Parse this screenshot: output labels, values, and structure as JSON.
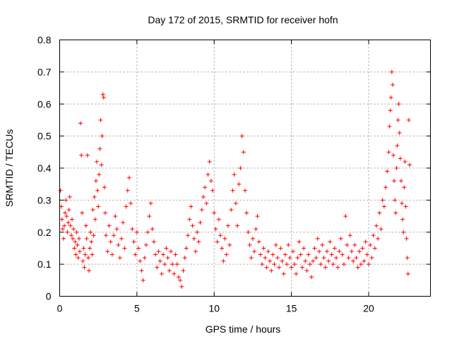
{
  "chart_data": {
    "type": "scatter",
    "title": "Day 172 of 2015, SRMTID for receiver hofn",
    "xlabel": "GPS time / hours",
    "ylabel": "SRMTID / TECUs",
    "xlim": [
      0,
      24
    ],
    "ylim": [
      0,
      0.8
    ],
    "xticks": [
      0,
      5,
      10,
      15,
      20
    ],
    "yticks": [
      0,
      0.1,
      0.2,
      0.3,
      0.4,
      0.5,
      0.6,
      0.7,
      0.8
    ],
    "grid": true,
    "marker": "+",
    "color": "#ff0000",
    "series": [
      {
        "name": "SRMTID",
        "points": [
          [
            0.05,
            0.33
          ],
          [
            0.1,
            0.28
          ],
          [
            0.15,
            0.24
          ],
          [
            0.2,
            0.21
          ],
          [
            0.25,
            0.18
          ],
          [
            0.3,
            0.22
          ],
          [
            0.35,
            0.26
          ],
          [
            0.4,
            0.3
          ],
          [
            0.45,
            0.25
          ],
          [
            0.5,
            0.2
          ],
          [
            0.55,
            0.23
          ],
          [
            0.6,
            0.27
          ],
          [
            0.65,
            0.31
          ],
          [
            0.7,
            0.22
          ],
          [
            0.75,
            0.19
          ],
          [
            0.8,
            0.24
          ],
          [
            0.85,
            0.18
          ],
          [
            0.9,
            0.21
          ],
          [
            0.95,
            0.15
          ],
          [
            1.0,
            0.17
          ],
          [
            1.05,
            0.13
          ],
          [
            1.1,
            0.2
          ],
          [
            1.15,
            0.16
          ],
          [
            1.2,
            0.12
          ],
          [
            1.25,
            0.18
          ],
          [
            1.3,
            0.14
          ],
          [
            1.35,
            0.54
          ],
          [
            1.4,
            0.44
          ],
          [
            1.45,
            0.26
          ],
          [
            1.5,
            0.11
          ],
          [
            1.55,
            0.15
          ],
          [
            1.6,
            0.09
          ],
          [
            1.65,
            0.13
          ],
          [
            1.7,
            0.22
          ],
          [
            1.75,
            0.18
          ],
          [
            1.8,
            0.44
          ],
          [
            1.85,
            0.12
          ],
          [
            1.9,
            0.08
          ],
          [
            1.95,
            0.15
          ],
          [
            2.0,
            0.2
          ],
          [
            2.05,
            0.17
          ],
          [
            2.1,
            0.13
          ],
          [
            2.15,
            0.27
          ],
          [
            2.2,
            0.19
          ],
          [
            2.25,
            0.31
          ],
          [
            2.3,
            0.24
          ],
          [
            2.35,
            0.36
          ],
          [
            2.4,
            0.42
          ],
          [
            2.45,
            0.33
          ],
          [
            2.5,
            0.28
          ],
          [
            2.55,
            0.38
          ],
          [
            2.6,
            0.46
          ],
          [
            2.65,
            0.55
          ],
          [
            2.7,
            0.41
          ],
          [
            2.75,
            0.5
          ],
          [
            2.8,
            0.63
          ],
          [
            2.85,
            0.62
          ],
          [
            2.9,
            0.34
          ],
          [
            2.95,
            0.26
          ],
          [
            3.0,
            0.19
          ],
          [
            3.1,
            0.14
          ],
          [
            3.2,
            0.22
          ],
          [
            3.3,
            0.17
          ],
          [
            3.4,
            0.13
          ],
          [
            3.5,
            0.19
          ],
          [
            3.6,
            0.25
          ],
          [
            3.7,
            0.21
          ],
          [
            3.8,
            0.16
          ],
          [
            3.9,
            0.12
          ],
          [
            4.0,
            0.18
          ],
          [
            4.1,
            0.23
          ],
          [
            4.2,
            0.15
          ],
          [
            4.3,
            0.28
          ],
          [
            4.4,
            0.33
          ],
          [
            4.5,
            0.37
          ],
          [
            4.6,
            0.29
          ],
          [
            4.7,
            0.21
          ],
          [
            4.8,
            0.17
          ],
          [
            4.9,
            0.13
          ],
          [
            5.0,
            0.2
          ],
          [
            5.1,
            0.15
          ],
          [
            5.2,
            0.11
          ],
          [
            5.3,
            0.08
          ],
          [
            5.4,
            0.05
          ],
          [
            5.5,
            0.12
          ],
          [
            5.6,
            0.16
          ],
          [
            5.7,
            0.2
          ],
          [
            5.8,
            0.25
          ],
          [
            5.9,
            0.29
          ],
          [
            6.0,
            0.21
          ],
          [
            6.1,
            0.17
          ],
          [
            6.2,
            0.13
          ],
          [
            6.3,
            0.09
          ],
          [
            6.4,
            0.14
          ],
          [
            6.5,
            0.11
          ],
          [
            6.6,
            0.07
          ],
          [
            6.7,
            0.13
          ],
          [
            6.8,
            0.1
          ],
          [
            6.9,
            0.15
          ],
          [
            7.0,
            0.12
          ],
          [
            7.1,
            0.08
          ],
          [
            7.2,
            0.14
          ],
          [
            7.3,
            0.1
          ],
          [
            7.4,
            0.07
          ],
          [
            7.5,
            0.13
          ],
          [
            7.6,
            0.1
          ],
          [
            7.7,
            0.06
          ],
          [
            7.8,
            0.05
          ],
          [
            7.9,
            0.03
          ],
          [
            8.0,
            0.08
          ],
          [
            8.1,
            0.12
          ],
          [
            8.2,
            0.15
          ],
          [
            8.3,
            0.19
          ],
          [
            8.4,
            0.24
          ],
          [
            8.5,
            0.28
          ],
          [
            8.6,
            0.22
          ],
          [
            8.7,
            0.18
          ],
          [
            8.8,
            0.14
          ],
          [
            8.9,
            0.2
          ],
          [
            9.0,
            0.17
          ],
          [
            9.1,
            0.23
          ],
          [
            9.2,
            0.27
          ],
          [
            9.3,
            0.31
          ],
          [
            9.4,
            0.34
          ],
          [
            9.5,
            0.29
          ],
          [
            9.6,
            0.38
          ],
          [
            9.7,
            0.42
          ],
          [
            9.8,
            0.36
          ],
          [
            9.9,
            0.33
          ],
          [
            10.0,
            0.26
          ],
          [
            10.1,
            0.21
          ],
          [
            10.2,
            0.17
          ],
          [
            10.3,
            0.24
          ],
          [
            10.4,
            0.19
          ],
          [
            10.5,
            0.15
          ],
          [
            10.6,
            0.11
          ],
          [
            10.7,
            0.18
          ],
          [
            10.8,
            0.13
          ],
          [
            10.9,
            0.22
          ],
          [
            11.0,
            0.16
          ],
          [
            11.1,
            0.27
          ],
          [
            11.2,
            0.33
          ],
          [
            11.3,
            0.38
          ],
          [
            11.4,
            0.29
          ],
          [
            11.5,
            0.22
          ],
          [
            11.6,
            0.35
          ],
          [
            11.7,
            0.4
          ],
          [
            11.8,
            0.5
          ],
          [
            11.9,
            0.45
          ],
          [
            12.0,
            0.33
          ],
          [
            12.1,
            0.26
          ],
          [
            12.2,
            0.2
          ],
          [
            12.3,
            0.16
          ],
          [
            12.4,
            0.12
          ],
          [
            12.5,
            0.18
          ],
          [
            12.6,
            0.14
          ],
          [
            12.7,
            0.21
          ],
          [
            12.8,
            0.25
          ],
          [
            12.9,
            0.17
          ],
          [
            13.0,
            0.13
          ],
          [
            13.1,
            0.1
          ],
          [
            13.2,
            0.15
          ],
          [
            13.3,
            0.12
          ],
          [
            13.4,
            0.09
          ],
          [
            13.5,
            0.14
          ],
          [
            13.6,
            0.11
          ],
          [
            13.7,
            0.08
          ],
          [
            13.8,
            0.13
          ],
          [
            13.9,
            0.1
          ],
          [
            14.0,
            0.16
          ],
          [
            14.1,
            0.12
          ],
          [
            14.2,
            0.09
          ],
          [
            14.3,
            0.15
          ],
          [
            14.4,
            0.11
          ],
          [
            14.5,
            0.07
          ],
          [
            14.6,
            0.13
          ],
          [
            14.7,
            0.1
          ],
          [
            14.8,
            0.16
          ],
          [
            14.9,
            0.12
          ],
          [
            15.0,
            0.09
          ],
          [
            15.1,
            0.14
          ],
          [
            15.2,
            0.1
          ],
          [
            15.3,
            0.07
          ],
          [
            15.4,
            0.12
          ],
          [
            15.5,
            0.17
          ],
          [
            15.6,
            0.13
          ],
          [
            15.7,
            0.09
          ],
          [
            15.8,
            0.15
          ],
          [
            15.9,
            0.11
          ],
          [
            16.0,
            0.08
          ],
          [
            16.1,
            0.13
          ],
          [
            16.2,
            0.1
          ],
          [
            16.3,
            0.06
          ],
          [
            16.4,
            0.11
          ],
          [
            16.5,
            0.15
          ],
          [
            16.6,
            0.12
          ],
          [
            16.7,
            0.18
          ],
          [
            16.8,
            0.14
          ],
          [
            16.9,
            0.1
          ],
          [
            17.0,
            0.16
          ],
          [
            17.1,
            0.12
          ],
          [
            17.2,
            0.09
          ],
          [
            17.3,
            0.14
          ],
          [
            17.4,
            0.11
          ],
          [
            17.5,
            0.17
          ],
          [
            17.6,
            0.13
          ],
          [
            17.7,
            0.1
          ],
          [
            17.8,
            0.15
          ],
          [
            17.9,
            0.12
          ],
          [
            18.0,
            0.09
          ],
          [
            18.1,
            0.14
          ],
          [
            18.2,
            0.18
          ],
          [
            18.3,
            0.13
          ],
          [
            18.4,
            0.1
          ],
          [
            18.5,
            0.25
          ],
          [
            18.6,
            0.16
          ],
          [
            18.7,
            0.12
          ],
          [
            18.8,
            0.19
          ],
          [
            18.9,
            0.14
          ],
          [
            19.0,
            0.11
          ],
          [
            19.1,
            0.16
          ],
          [
            19.2,
            0.12
          ],
          [
            19.3,
            0.09
          ],
          [
            19.4,
            0.14
          ],
          [
            19.5,
            0.1
          ],
          [
            19.6,
            0.15
          ],
          [
            19.7,
            0.11
          ],
          [
            19.8,
            0.17
          ],
          [
            19.9,
            0.13
          ],
          [
            20.0,
            0.1
          ],
          [
            20.1,
            0.16
          ],
          [
            20.2,
            0.12
          ],
          [
            20.3,
            0.19
          ],
          [
            20.4,
            0.15
          ],
          [
            20.5,
            0.22
          ],
          [
            20.6,
            0.18
          ],
          [
            20.7,
            0.26
          ],
          [
            20.8,
            0.21
          ],
          [
            20.9,
            0.3
          ],
          [
            21.0,
            0.28
          ],
          [
            21.1,
            0.34
          ],
          [
            21.2,
            0.39
          ],
          [
            21.3,
            0.45
          ],
          [
            21.35,
            0.53
          ],
          [
            21.4,
            0.58
          ],
          [
            21.45,
            0.62
          ],
          [
            21.5,
            0.7
          ],
          [
            21.55,
            0.66
          ],
          [
            21.6,
            0.44
          ],
          [
            21.65,
            0.36
          ],
          [
            21.7,
            0.3
          ],
          [
            21.75,
            0.26
          ],
          [
            21.8,
            0.4
          ],
          [
            21.85,
            0.47
          ],
          [
            21.9,
            0.55
          ],
          [
            21.95,
            0.6
          ],
          [
            22.0,
            0.51
          ],
          [
            22.05,
            0.43
          ],
          [
            22.1,
            0.36
          ],
          [
            22.15,
            0.29
          ],
          [
            22.2,
            0.24
          ],
          [
            22.25,
            0.2
          ],
          [
            22.3,
            0.34
          ],
          [
            22.35,
            0.42
          ],
          [
            22.4,
            0.28
          ],
          [
            22.45,
            0.18
          ],
          [
            22.5,
            0.12
          ],
          [
            22.55,
            0.07
          ],
          [
            22.6,
            0.55
          ],
          [
            22.65,
            0.41
          ]
        ]
      }
    ]
  }
}
